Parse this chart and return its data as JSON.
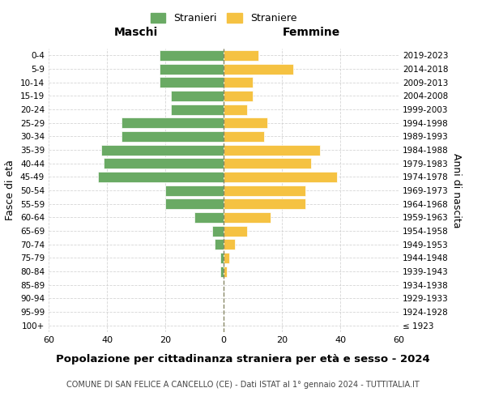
{
  "age_groups": [
    "100+",
    "95-99",
    "90-94",
    "85-89",
    "80-84",
    "75-79",
    "70-74",
    "65-69",
    "60-64",
    "55-59",
    "50-54",
    "45-49",
    "40-44",
    "35-39",
    "30-34",
    "25-29",
    "20-24",
    "15-19",
    "10-14",
    "5-9",
    "0-4"
  ],
  "birth_years": [
    "≤ 1923",
    "1924-1928",
    "1929-1933",
    "1934-1938",
    "1939-1943",
    "1944-1948",
    "1949-1953",
    "1954-1958",
    "1959-1963",
    "1964-1968",
    "1969-1973",
    "1974-1978",
    "1979-1983",
    "1984-1988",
    "1989-1993",
    "1994-1998",
    "1999-2003",
    "2004-2008",
    "2009-2013",
    "2014-2018",
    "2019-2023"
  ],
  "males": [
    0,
    0,
    0,
    0,
    1,
    1,
    3,
    4,
    10,
    20,
    20,
    43,
    41,
    42,
    35,
    35,
    18,
    18,
    22,
    22,
    22
  ],
  "females": [
    0,
    0,
    0,
    0,
    1,
    2,
    4,
    8,
    16,
    28,
    28,
    39,
    30,
    33,
    14,
    15,
    8,
    10,
    10,
    24,
    12
  ],
  "male_color": "#6aaa64",
  "female_color": "#f5c242",
  "background_color": "#ffffff",
  "grid_color": "#cccccc",
  "center_line_color": "#888866",
  "title": "Popolazione per cittadinanza straniera per età e sesso - 2024",
  "subtitle": "COMUNE DI SAN FELICE A CANCELLO (CE) - Dati ISTAT al 1° gennaio 2024 - TUTTITALIA.IT",
  "ylabel_left": "Fasce di età",
  "ylabel_right": "Anni di nascita",
  "xlabel_left": "Maschi",
  "xlabel_right": "Femmine",
  "legend_male": "Stranieri",
  "legend_female": "Straniere",
  "xlim": 60,
  "figsize": [
    6.0,
    5.0
  ],
  "dpi": 100
}
